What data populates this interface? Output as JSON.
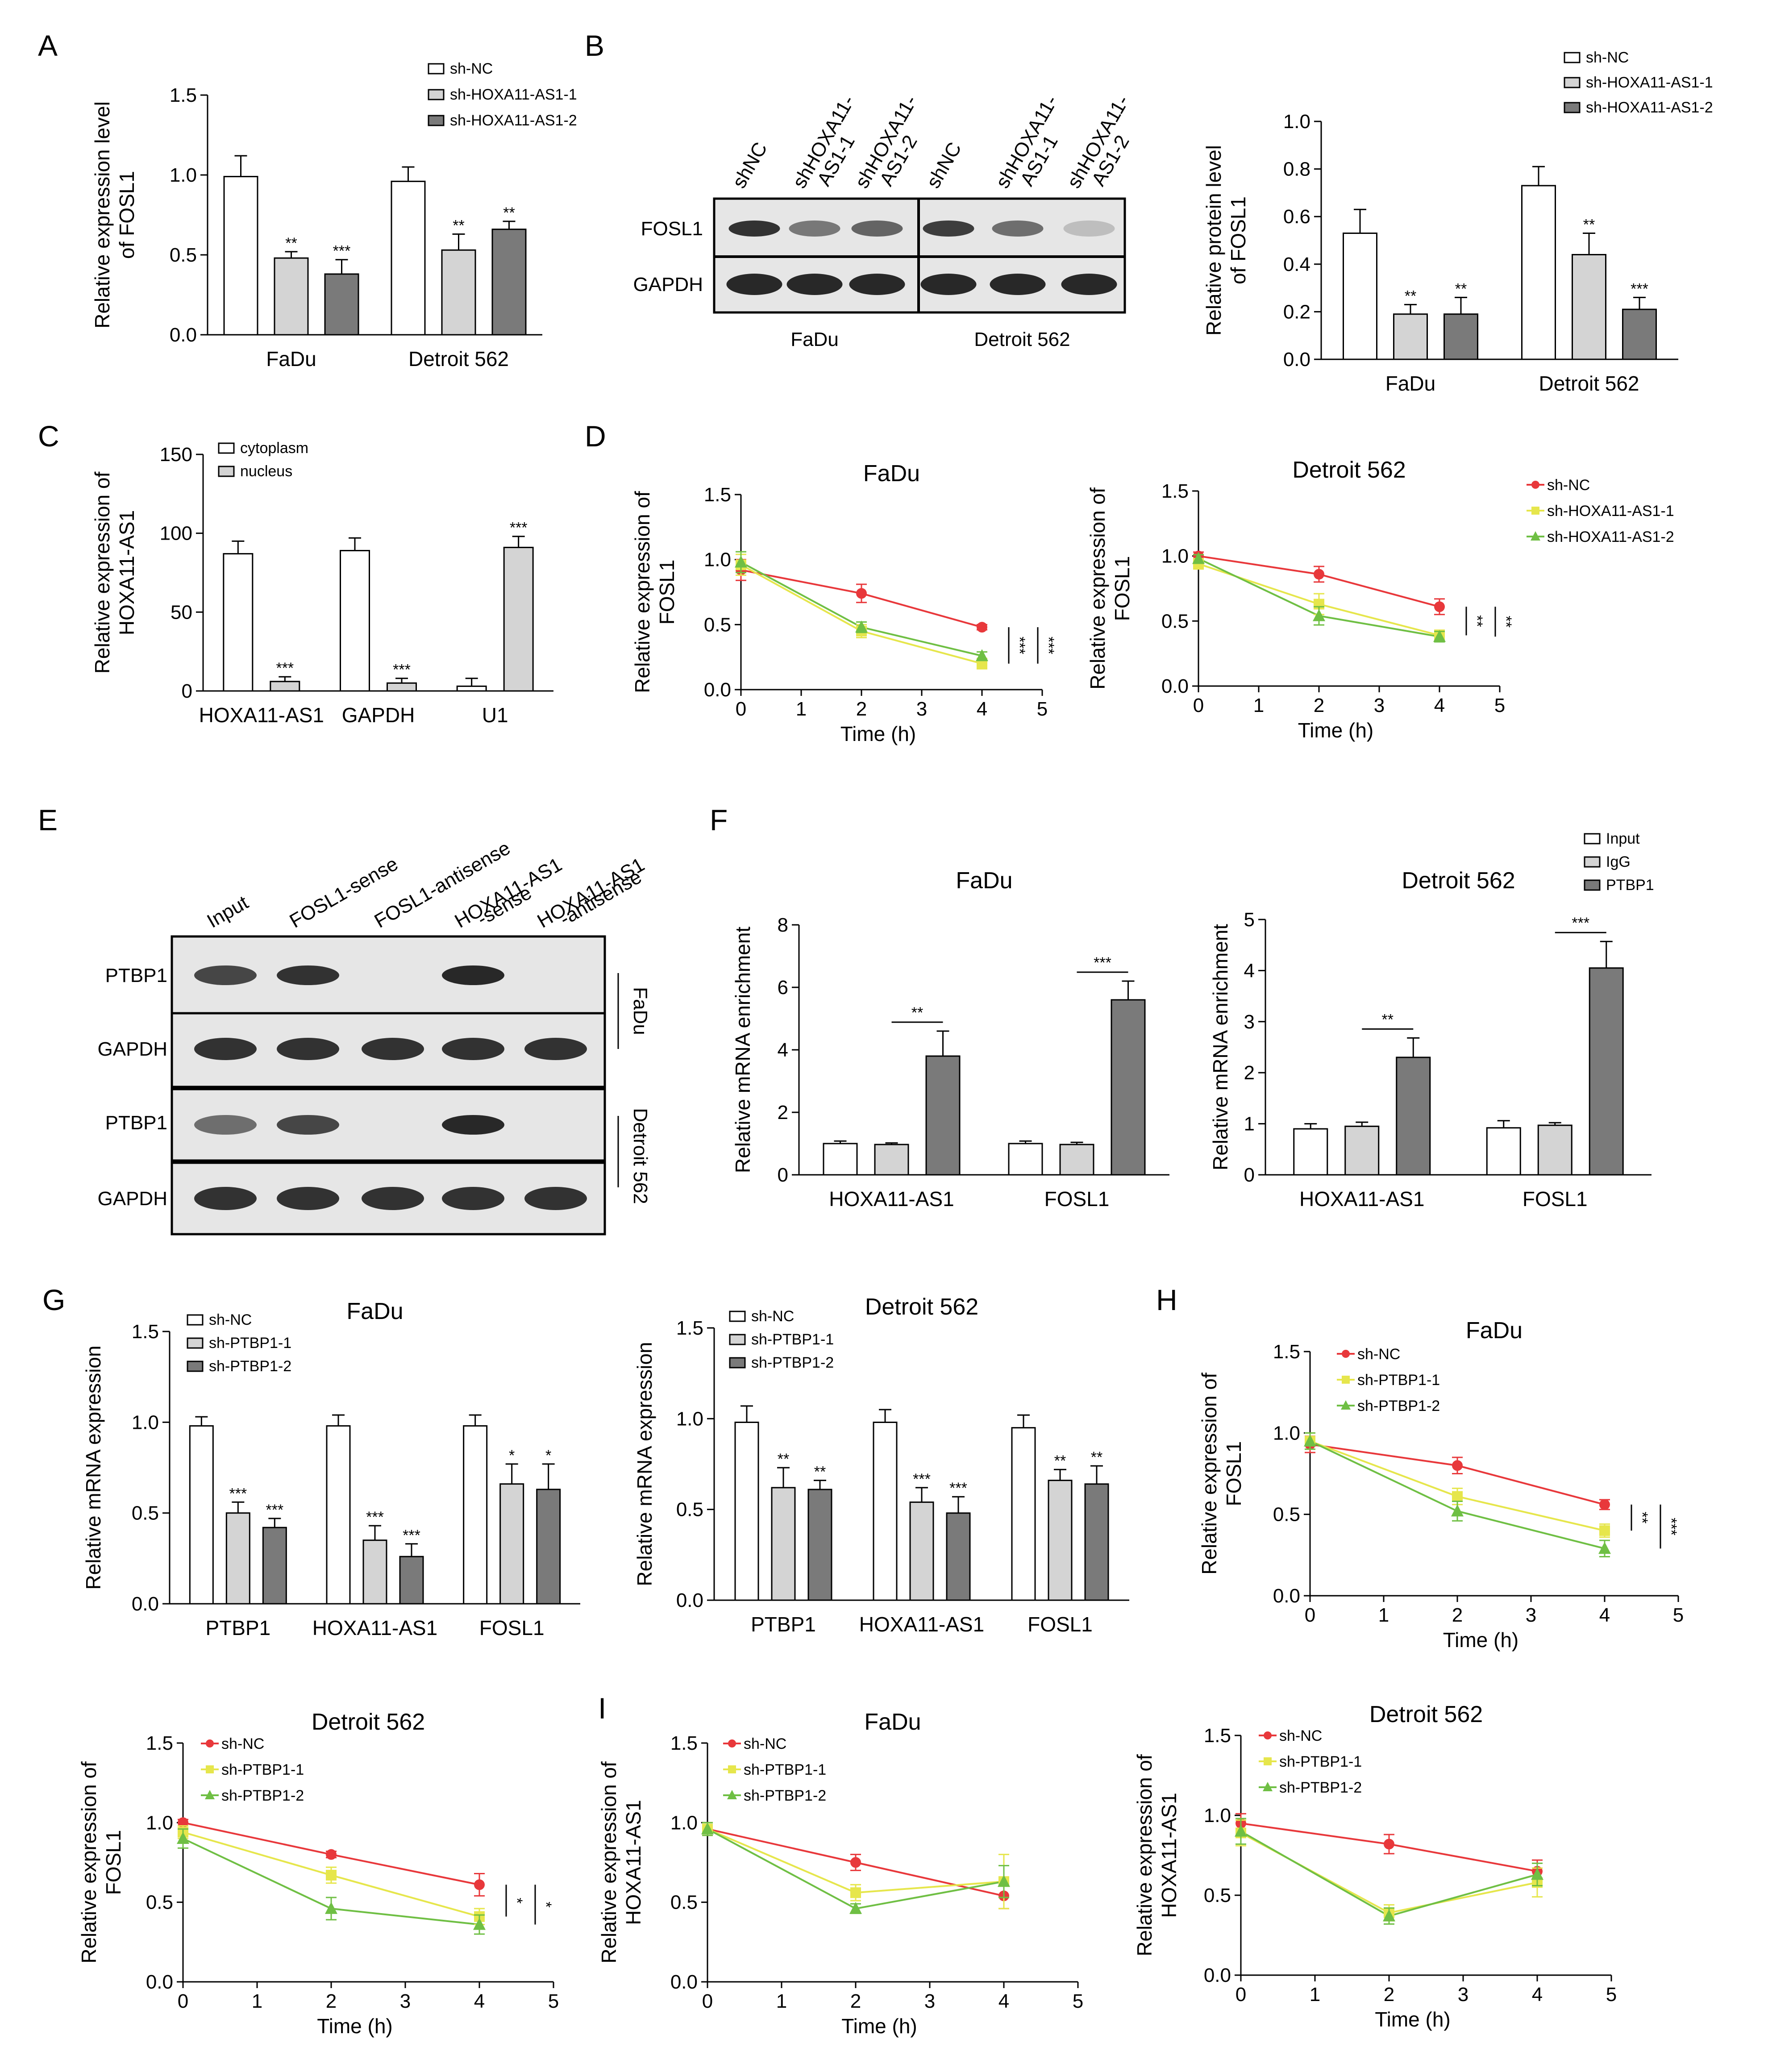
{
  "colors": {
    "white": "#ffffff",
    "light_gray": "#d4d4d4",
    "dark_gray": "#7a7a7a",
    "red": "#e8383b",
    "yellow": "#e6e64c",
    "green": "#6fbf44",
    "blot_bg": "#e6e6e6",
    "band": "#1e1e1e"
  },
  "panels": {
    "A": {
      "letter": "A",
      "ylabel_1": "Relative expression level",
      "ylabel_2": "of FOSL1",
      "legend": [
        "sh-NC",
        "sh-HOXA11-AS1-1",
        "sh-HOXA11-AS1-2"
      ],
      "chart_data": {
        "type": "bar",
        "categories": [
          "FaDu",
          "Detroit 562"
        ],
        "series": [
          {
            "name": "sh-NC",
            "values": [
              0.99,
              0.96
            ],
            "err": [
              0.13,
              0.09
            ]
          },
          {
            "name": "sh-HOXA11-AS1-1",
            "values": [
              0.48,
              0.53
            ],
            "err": [
              0.04,
              0.1
            ]
          },
          {
            "name": "sh-HOXA11-AS1-2",
            "values": [
              0.38,
              0.66
            ],
            "err": [
              0.09,
              0.05
            ]
          }
        ],
        "sig": [
          [
            "",
            "**",
            "***"
          ],
          [
            "",
            "**",
            "**"
          ]
        ],
        "ylim": [
          0,
          1.5
        ],
        "yticks": [
          "0.0",
          "0.5",
          "1.0",
          "1.5"
        ]
      }
    },
    "B": {
      "letter": "B",
      "blot": {
        "lanes": [
          "shNC",
          "shHOXA11-\nAS1-1",
          "shHOXA11-\nAS1-2",
          "shNC",
          "shHOXA11-\nAS1-1",
          "shHOXA11-\nAS1-2"
        ],
        "rows": [
          "FOSL1",
          "GAPDH"
        ],
        "groups": [
          "FaDu",
          "Detroit 562"
        ]
      },
      "ylabel_1": "Relative protein level",
      "ylabel_2": "of FOSL1",
      "legend": [
        "sh-NC",
        "sh-HOXA11-AS1-1",
        "sh-HOXA11-AS1-2"
      ],
      "chart_data": {
        "type": "bar",
        "categories": [
          "FaDu",
          "Detroit 562"
        ],
        "series": [
          {
            "name": "sh-NC",
            "values": [
              0.53,
              0.73
            ],
            "err": [
              0.1,
              0.08
            ]
          },
          {
            "name": "sh-HOXA11-AS1-1",
            "values": [
              0.19,
              0.44
            ],
            "err": [
              0.04,
              0.09
            ]
          },
          {
            "name": "sh-HOXA11-AS1-2",
            "values": [
              0.19,
              0.21
            ],
            "err": [
              0.07,
              0.05
            ]
          }
        ],
        "sig": [
          [
            "",
            "**",
            "**"
          ],
          [
            "",
            "**",
            "***"
          ]
        ],
        "ylim": [
          0,
          1.0
        ],
        "yticks": [
          "0.0",
          "0.2",
          "0.4",
          "0.6",
          "0.8",
          "1.0"
        ]
      }
    },
    "C": {
      "letter": "C",
      "ylabel_1": "Relative expression of",
      "ylabel_2": "HOXA11-AS1",
      "legend": [
        "cytoplasm",
        "nucleus"
      ],
      "chart_data": {
        "type": "bar",
        "categories": [
          "HOXA11-AS1",
          "GAPDH",
          "U1"
        ],
        "series": [
          {
            "name": "cytoplasm",
            "values": [
              87,
              89,
              3
            ],
            "err": [
              8,
              8,
              5
            ]
          },
          {
            "name": "nucleus",
            "values": [
              6,
              5,
              91
            ],
            "err": [
              3,
              3,
              7
            ]
          }
        ],
        "sig": [
          [
            "",
            "***"
          ],
          [
            "",
            "***"
          ],
          [
            "",
            "***"
          ]
        ],
        "ylim": [
          0,
          150
        ],
        "yticks": [
          "0",
          "50",
          "100",
          "150"
        ]
      }
    },
    "D": {
      "letter": "D",
      "legend": [
        "sh-NC",
        "sh-HOXA11-AS1-1",
        "sh-HOXA11-AS1-2"
      ],
      "chart_data": [
        {
          "type": "line",
          "title": "FaDu",
          "ylabel_1": "Relative expression of",
          "ylabel_2": "FOSL1",
          "xlabel": "Time (h)",
          "x": [
            0,
            2,
            4
          ],
          "xlim": [
            0,
            5
          ],
          "ylim": [
            0,
            1.5
          ],
          "series": [
            {
              "name": "sh-NC",
              "values": [
                0.92,
                0.74,
                0.48
              ],
              "err": [
                0.08,
                0.07,
                0.02
              ]
            },
            {
              "name": "sh-HOXA11-AS1-1",
              "values": [
                0.96,
                0.45,
                0.2
              ],
              "err": [
                0.08,
                0.05,
                0.04
              ]
            },
            {
              "name": "sh-HOXA11-AS1-2",
              "values": [
                0.98,
                0.48,
                0.26
              ],
              "err": [
                0.08,
                0.04,
                0.03
              ]
            }
          ],
          "sig": [
            "***",
            "***"
          ]
        },
        {
          "type": "line",
          "title": "Detroit 562",
          "ylabel_1": "Relative expression of",
          "ylabel_2": "FOSL1",
          "xlabel": "Time (h)",
          "x": [
            0,
            2,
            4
          ],
          "xlim": [
            0,
            5
          ],
          "ylim": [
            0,
            1.5
          ],
          "series": [
            {
              "name": "sh-NC",
              "values": [
                1.0,
                0.86,
                0.61
              ],
              "err": [
                0.03,
                0.06,
                0.06
              ]
            },
            {
              "name": "sh-HOXA11-AS1-1",
              "values": [
                0.94,
                0.63,
                0.39
              ],
              "err": [
                0.04,
                0.08,
                0.04
              ]
            },
            {
              "name": "sh-HOXA11-AS1-2",
              "values": [
                0.98,
                0.54,
                0.38
              ],
              "err": [
                0.03,
                0.07,
                0.04
              ]
            }
          ],
          "sig": [
            "**",
            "**"
          ]
        }
      ]
    },
    "E": {
      "letter": "E",
      "lanes": [
        "Input",
        "FOSL1-sense",
        "FOSL1-antisense",
        "HOXA11-AS1\n-sense",
        "HOXA11-AS1\n-antisense"
      ],
      "rows": [
        "PTBP1",
        "GAPDH",
        "PTBP1",
        "GAPDH"
      ],
      "groups": [
        "FaDu",
        "Detroit 562"
      ]
    },
    "F": {
      "letter": "F",
      "legend": [
        "Input",
        "IgG",
        "PTBP1"
      ],
      "chart_data": [
        {
          "type": "bar",
          "title": "FaDu",
          "ylabel": "Relative mRNA enrichment",
          "categories": [
            "HOXA11-AS1",
            "FOSL1"
          ],
          "series": [
            {
              "name": "Input",
              "values": [
                1.0,
                1.0
              ],
              "err": [
                0.08,
                0.08
              ]
            },
            {
              "name": "IgG",
              "values": [
                0.97,
                0.97
              ],
              "err": [
                0.05,
                0.07
              ]
            },
            {
              "name": "PTBP1",
              "values": [
                3.8,
                5.6
              ],
              "err": [
                0.8,
                0.6
              ]
            }
          ],
          "sig": [
            "**",
            "***"
          ],
          "ylim": [
            0,
            8
          ],
          "yticks": [
            "0",
            "2",
            "4",
            "6",
            "8"
          ]
        },
        {
          "type": "bar",
          "title": "Detroit 562",
          "ylabel": "Relative mRNA enrichment",
          "categories": [
            "HOXA11-AS1",
            "FOSL1"
          ],
          "series": [
            {
              "name": "Input",
              "values": [
                0.9,
                0.92
              ],
              "err": [
                0.1,
                0.14
              ]
            },
            {
              "name": "IgG",
              "values": [
                0.95,
                0.97
              ],
              "err": [
                0.08,
                0.05
              ]
            },
            {
              "name": "PTBP1",
              "values": [
                2.3,
                4.05
              ],
              "err": [
                0.38,
                0.52
              ]
            }
          ],
          "sig": [
            "**",
            "***"
          ],
          "ylim": [
            0,
            5
          ],
          "yticks": [
            "0",
            "1",
            "2",
            "3",
            "4",
            "5"
          ]
        }
      ]
    },
    "G": {
      "letter": "G",
      "legend": [
        "sh-NC",
        "sh-PTBP1-1",
        "sh-PTBP1-2"
      ],
      "chart_data": [
        {
          "type": "bar",
          "title": "FaDu",
          "ylabel": "Relative mRNA expression",
          "categories": [
            "PTBP1",
            "HOXA11-AS1",
            "FOSL1"
          ],
          "series": [
            {
              "name": "sh-NC",
              "values": [
                0.98,
                0.98,
                0.98
              ],
              "err": [
                0.05,
                0.06,
                0.06
              ]
            },
            {
              "name": "sh-PTBP1-1",
              "values": [
                0.5,
                0.35,
                0.66
              ],
              "err": [
                0.06,
                0.08,
                0.11
              ]
            },
            {
              "name": "sh-PTBP1-2",
              "values": [
                0.42,
                0.26,
                0.63
              ],
              "err": [
                0.05,
                0.07,
                0.14
              ]
            }
          ],
          "sig": [
            [
              "",
              "***",
              "***"
            ],
            [
              "",
              "***",
              "***"
            ],
            [
              "",
              "*",
              "*"
            ]
          ],
          "ylim": [
            0,
            1.5
          ],
          "yticks": [
            "0.0",
            "0.5",
            "1.0",
            "1.5"
          ]
        },
        {
          "type": "bar",
          "title": "Detroit 562",
          "ylabel": "Relative mRNA expression",
          "categories": [
            "PTBP1",
            "HOXA11-AS1",
            "FOSL1"
          ],
          "series": [
            {
              "name": "sh-NC",
              "values": [
                0.98,
                0.98,
                0.95
              ],
              "err": [
                0.09,
                0.07,
                0.07
              ]
            },
            {
              "name": "sh-PTBP1-1",
              "values": [
                0.62,
                0.54,
                0.66
              ],
              "err": [
                0.11,
                0.08,
                0.06
              ]
            },
            {
              "name": "sh-PTBP1-2",
              "values": [
                0.61,
                0.48,
                0.64
              ],
              "err": [
                0.05,
                0.09,
                0.1
              ]
            }
          ],
          "sig": [
            [
              "",
              "**",
              "**"
            ],
            [
              "",
              "***",
              "***"
            ],
            [
              "",
              "**",
              "**"
            ]
          ],
          "ylim": [
            0,
            1.5
          ],
          "yticks": [
            "0.0",
            "0.5",
            "1.0",
            "1.5"
          ]
        }
      ]
    },
    "H": {
      "letter": "H",
      "chart_data": [
        {
          "type": "line",
          "title": "FaDu",
          "ylabel_1": "Relative expression of",
          "ylabel_2": "FOSL1",
          "xlabel": "Time (h)",
          "x": [
            0,
            2,
            4
          ],
          "xlim": [
            0,
            5
          ],
          "ylim": [
            0,
            1.5
          ],
          "legend": [
            "sh-NC",
            "sh-PTBP1-1",
            "sh-PTBP1-2"
          ],
          "series": [
            {
              "name": "sh-NC",
              "values": [
                0.93,
                0.8,
                0.56
              ],
              "err": [
                0.05,
                0.05,
                0.03
              ]
            },
            {
              "name": "sh-PTBP1-1",
              "values": [
                0.95,
                0.61,
                0.4
              ],
              "err": [
                0.05,
                0.05,
                0.04
              ]
            },
            {
              "name": "sh-PTBP1-2",
              "values": [
                0.95,
                0.52,
                0.29
              ],
              "err": [
                0.05,
                0.06,
                0.05
              ]
            }
          ],
          "sig": [
            "**",
            "***"
          ]
        },
        {
          "type": "line",
          "title": "Detroit 562",
          "ylabel_1": "Relative expression of",
          "ylabel_2": "FOSL1",
          "xlabel": "Time (h)",
          "x": [
            0,
            2,
            4
          ],
          "xlim": [
            0,
            5
          ],
          "ylim": [
            0,
            1.5
          ],
          "legend": [
            "sh-NC",
            "sh-PTBP1-1",
            "sh-PTBP1-2"
          ],
          "series": [
            {
              "name": "sh-NC",
              "values": [
                1.0,
                0.8,
                0.61
              ],
              "err": [
                0.02,
                0.02,
                0.07
              ]
            },
            {
              "name": "sh-PTBP1-1",
              "values": [
                0.94,
                0.67,
                0.41
              ],
              "err": [
                0.04,
                0.05,
                0.05
              ]
            },
            {
              "name": "sh-PTBP1-2",
              "values": [
                0.9,
                0.46,
                0.36
              ],
              "err": [
                0.06,
                0.07,
                0.06
              ]
            }
          ],
          "sig": [
            "*",
            "*"
          ]
        }
      ]
    },
    "I": {
      "letter": "I",
      "chart_data": [
        {
          "type": "line",
          "title": "FaDu",
          "ylabel_1": "Relative expression of",
          "ylabel_2": "HOXA11-AS1",
          "xlabel": "Time (h)",
          "x": [
            0,
            2,
            4
          ],
          "xlim": [
            0,
            5
          ],
          "ylim": [
            0,
            1.5
          ],
          "legend": [
            "sh-NC",
            "sh-PTBP1-1",
            "sh-PTBP1-2"
          ],
          "series": [
            {
              "name": "sh-NC",
              "values": [
                0.96,
                0.75,
                0.54
              ],
              "err": [
                0.04,
                0.05,
                0.08
              ]
            },
            {
              "name": "sh-PTBP1-1",
              "values": [
                0.96,
                0.56,
                0.63
              ],
              "err": [
                0.04,
                0.05,
                0.17
              ]
            },
            {
              "name": "sh-PTBP1-2",
              "values": [
                0.96,
                0.46,
                0.63
              ],
              "err": [
                0.04,
                0.03,
                0.1
              ]
            }
          ],
          "sig": []
        },
        {
          "type": "line",
          "title": "Detroit 562",
          "ylabel_1": "Relative expression of",
          "ylabel_2": "HOXA11-AS1",
          "xlabel": "Time (h)",
          "x": [
            0,
            2,
            4
          ],
          "xlim": [
            0,
            5
          ],
          "ylim": [
            0,
            1.5
          ],
          "legend": [
            "sh-NC",
            "sh-PTBP1-1",
            "sh-PTBP1-2"
          ],
          "series": [
            {
              "name": "sh-NC",
              "values": [
                0.95,
                0.82,
                0.65
              ],
              "err": [
                0.06,
                0.06,
                0.07
              ]
            },
            {
              "name": "sh-PTBP1-1",
              "values": [
                0.89,
                0.39,
                0.58
              ],
              "err": [
                0.08,
                0.05,
                0.09
              ]
            },
            {
              "name": "sh-PTBP1-2",
              "values": [
                0.9,
                0.37,
                0.63
              ],
              "err": [
                0.08,
                0.05,
                0.07
              ]
            }
          ],
          "sig": []
        }
      ]
    }
  }
}
